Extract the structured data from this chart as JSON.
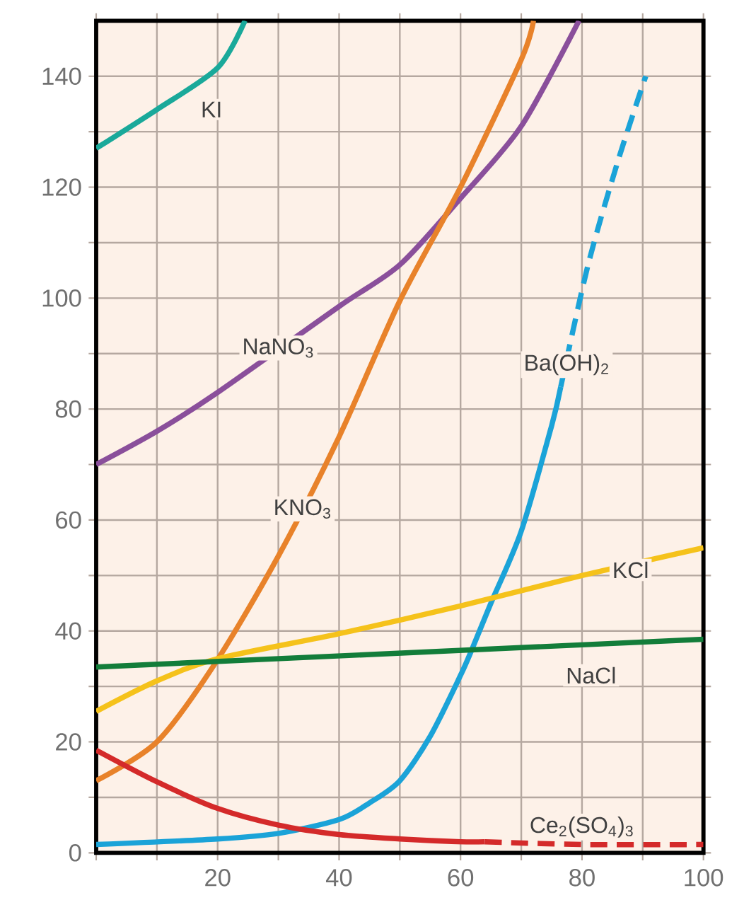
{
  "chart_data": {
    "type": "line",
    "xlim": [
      0,
      100
    ],
    "ylim": [
      0,
      150
    ],
    "xticks": [
      {
        "value": 0,
        "label": null
      },
      {
        "value": 10,
        "label": null
      },
      20,
      {
        "value": 30,
        "label": null
      },
      40,
      {
        "value": 50,
        "label": null
      },
      60,
      {
        "value": 70,
        "label": null
      },
      80,
      {
        "value": 90,
        "label": null
      },
      100
    ],
    "yticks": [
      0,
      {
        "value": 10,
        "label": null
      },
      20,
      {
        "value": 30,
        "label": null
      },
      40,
      {
        "value": 50,
        "label": null
      },
      60,
      {
        "value": 70,
        "label": null
      },
      80,
      {
        "value": 90,
        "label": null
      },
      100,
      {
        "value": 110,
        "label": null
      },
      120,
      {
        "value": 130,
        "label": null
      },
      140
    ],
    "grid": true,
    "marker": "none",
    "series": [
      {
        "color": "#1aa99a",
        "line_style": "solid",
        "x": [
          0,
          10,
          20,
          24.5
        ],
        "values": [
          127,
          134,
          141.5,
          150
        ]
      },
      {
        "color": "#8a4f9b",
        "line_style": "solid",
        "x": [
          0,
          10,
          20,
          30,
          40,
          50,
          60,
          70,
          79.5
        ],
        "values": [
          70,
          76,
          83,
          null,
          98.5,
          106,
          118,
          131,
          150
        ]
      },
      {
        "color": "#e8822a",
        "line_style": "solid",
        "x": [
          0,
          10,
          19.5,
          30,
          40,
          50,
          60,
          70,
          72
        ],
        "values": [
          13,
          20,
          34,
          53.5,
          75,
          99.5,
          120,
          143,
          150
        ]
      },
      {
        "color": "#1ba3d8",
        "line_style": "solid",
        "x": [
          0,
          20,
          30,
          40,
          45,
          50,
          55,
          60,
          62,
          65,
          70,
          75,
          76.5
        ],
        "values": [
          1.5,
          2.5,
          3.5,
          6,
          9,
          13,
          21,
          32,
          37,
          45,
          58,
          77,
          84
        ]
      },
      {
        "color": "#1ba3d8",
        "line_style": "dashed",
        "x": [
          76.5,
          81,
          86,
          90.5
        ],
        "values": [
          84,
          106,
          125,
          140
        ]
      },
      {
        "color": "#f5c21b",
        "line_style": "solid",
        "x": [
          0,
          10,
          20,
          40,
          60,
          80,
          100
        ],
        "values": [
          25.5,
          31,
          35,
          39.5,
          44.5,
          50,
          55
        ]
      },
      {
        "color": "#137d3a",
        "line_style": "solid",
        "x": [
          0,
          100
        ],
        "values": [
          33.5,
          38.5
        ]
      },
      {
        "color": "#d42a2a",
        "line_style": "solid",
        "x": [
          0,
          10,
          20,
          30,
          40,
          50,
          60,
          64
        ],
        "values": [
          18.5,
          12.8,
          8,
          5,
          3.3,
          2.5,
          2,
          2
        ]
      },
      {
        "color": "#d42a2a",
        "line_style": "dashed",
        "x": [
          64,
          80,
          100
        ],
        "values": [
          2,
          1.5,
          1.5
        ]
      }
    ],
    "annotations": [
      {
        "text": "KI",
        "x": 19,
        "y": 134
      },
      {
        "text": "NaNO$_{3}$",
        "x": 30,
        "y": 91
      },
      {
        "text": "KNO$_{3}$",
        "x": 34,
        "y": 62
      },
      {
        "text": "Ba(OH)$_{2}$",
        "x": 77.5,
        "y": 88
      },
      {
        "text": "KCl",
        "x": 88,
        "y": 51
      },
      {
        "text": "NaCl",
        "x": 81.5,
        "y": 32
      },
      {
        "text": "Ce$_{2}$(SO$_{4}$)$_{3}$",
        "x": 80,
        "y": 1.5
      }
    ]
  }
}
